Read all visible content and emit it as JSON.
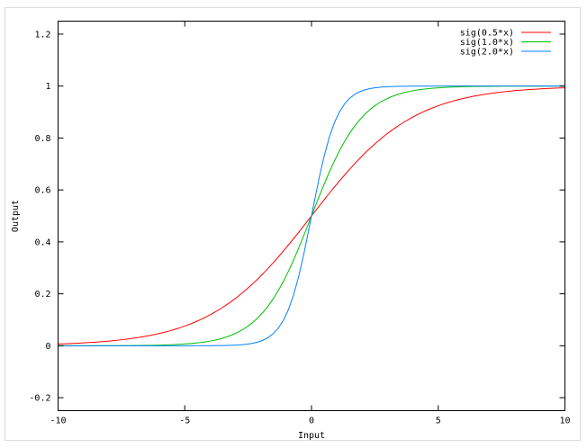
{
  "chart_data": {
    "type": "line",
    "xlabel": "Input",
    "ylabel": "Output",
    "xlim": [
      -10,
      10
    ],
    "ylim": [
      -0.25,
      1.25
    ],
    "xticks": [
      "-10",
      "-5",
      "0",
      "5",
      "10"
    ],
    "xtick_values": [
      -10,
      -5,
      0,
      5,
      10
    ],
    "yticks": [
      "-0.2",
      "0",
      "0.2",
      "0.4",
      "0.6",
      "0.8",
      "1",
      "1.2"
    ],
    "ytick_values": [
      -0.2,
      0,
      0.2,
      0.4,
      0.6,
      0.8,
      1,
      1.2
    ],
    "grid": false,
    "legend_position": "top-right",
    "series": [
      {
        "name": "sig(0.5*x)",
        "function": "1/(1+exp(-0.5*x))",
        "k": 0.5,
        "color": "#ff0000"
      },
      {
        "name": "sig(1.0*x)",
        "function": "1/(1+exp(-1.0*x))",
        "k": 1.0,
        "color": "#00c000"
      },
      {
        "name": "sig(2.0*x)",
        "function": "1/(1+exp(-2.0*x))",
        "k": 2.0,
        "color": "#0080ff"
      }
    ]
  }
}
